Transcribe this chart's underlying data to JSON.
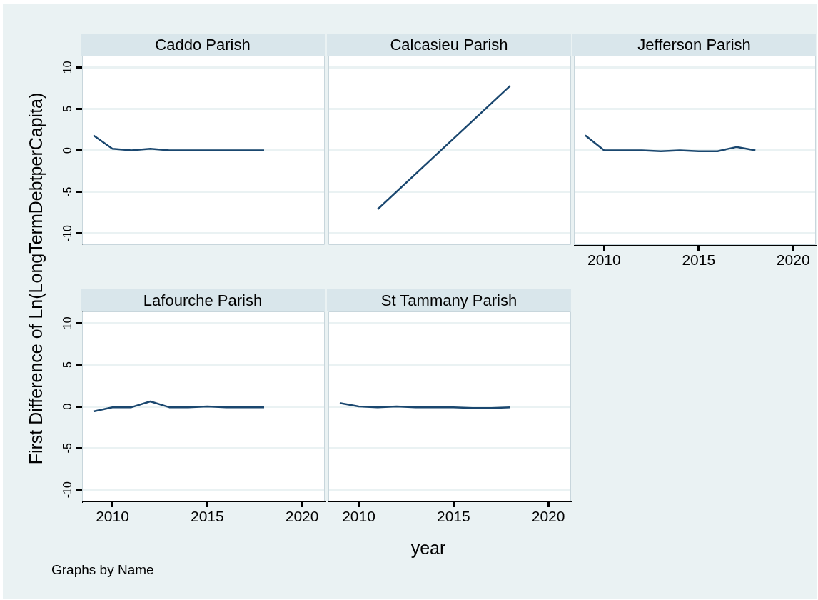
{
  "chart_data": [
    {
      "type": "line",
      "title": "Caddo Parish",
      "ylabel": "First Difference of Ln(LongTermDebtperCapita)",
      "x": [
        2009,
        2010,
        2011,
        2012,
        2013,
        2014,
        2015,
        2016,
        2017,
        2018
      ],
      "series": [
        {
          "color": "#1a476f",
          "values": [
            1.8,
            0.2,
            0,
            0.2,
            0,
            0,
            0,
            0,
            0,
            0
          ]
        }
      ],
      "xlim": [
        2008.4,
        2021.2
      ],
      "xticks": [
        2010,
        2015,
        2020
      ],
      "ylim": [
        -11.4,
        11.4
      ],
      "yticks": [
        -10,
        -5,
        0,
        5,
        10
      ],
      "grid": "y",
      "tick_labels": "y"
    },
    {
      "type": "line",
      "title": "Calcasieu Parish",
      "x": [
        2011,
        2018
      ],
      "series": [
        {
          "color": "#1a476f",
          "values": [
            -7.1,
            7.8
          ]
        }
      ],
      "xlim": [
        2008.4,
        2021.2
      ],
      "xticks": [
        2010,
        2015,
        2020
      ],
      "ylim": [
        -11.4,
        11.4
      ],
      "yticks": [
        -10,
        -5,
        0,
        5,
        10
      ],
      "grid": "y",
      "tick_labels": false
    },
    {
      "type": "line",
      "title": "Jefferson Parish",
      "x": [
        2009,
        2010,
        2011,
        2012,
        2013,
        2014,
        2015,
        2016,
        2017,
        2018
      ],
      "series": [
        {
          "color": "#1a476f",
          "values": [
            1.8,
            0,
            0,
            0,
            -0.1,
            0,
            -0.1,
            -0.1,
            0.4,
            0
          ]
        }
      ],
      "xlim": [
        2008.4,
        2021.2
      ],
      "xticks": [
        2010,
        2015,
        2020
      ],
      "ylim": [
        -11.4,
        11.4
      ],
      "yticks": [
        -10,
        -5,
        0,
        5,
        10
      ],
      "grid": "y",
      "tick_labels": "x"
    },
    {
      "type": "line",
      "title": "Lafourche Parish",
      "annotations": [
        "Graphs by Name"
      ],
      "x": [
        2009,
        2010,
        2011,
        2012,
        2013,
        2014,
        2015,
        2016,
        2017,
        2018
      ],
      "series": [
        {
          "color": "#1a476f",
          "values": [
            -0.6,
            -0.1,
            -0.1,
            0.6,
            -0.1,
            -0.1,
            0,
            -0.1,
            -0.1,
            -0.1
          ]
        }
      ],
      "xlim": [
        2008.4,
        2021.2
      ],
      "xticks": [
        2010,
        2015,
        2020
      ],
      "ylim": [
        -11.4,
        11.4
      ],
      "yticks": [
        -10,
        -5,
        0,
        5,
        10
      ],
      "grid": "y"
    },
    {
      "type": "line",
      "title": "St Tammany Parish",
      "xlabel": "year",
      "x": [
        2009,
        2010,
        2011,
        2012,
        2013,
        2014,
        2015,
        2016,
        2017,
        2018
      ],
      "series": [
        {
          "color": "#1a476f",
          "values": [
            0.4,
            0,
            -0.1,
            0,
            -0.1,
            -0.1,
            -0.1,
            -0.2,
            -0.2,
            -0.1
          ]
        }
      ],
      "xlim": [
        2008.4,
        2021.2
      ],
      "xticks": [
        2010,
        2015,
        2020
      ],
      "ylim": [
        -11.4,
        11.4
      ],
      "yticks": [
        -10,
        -5,
        0,
        5,
        10
      ],
      "grid": "y",
      "tick_labels": "x"
    }
  ]
}
